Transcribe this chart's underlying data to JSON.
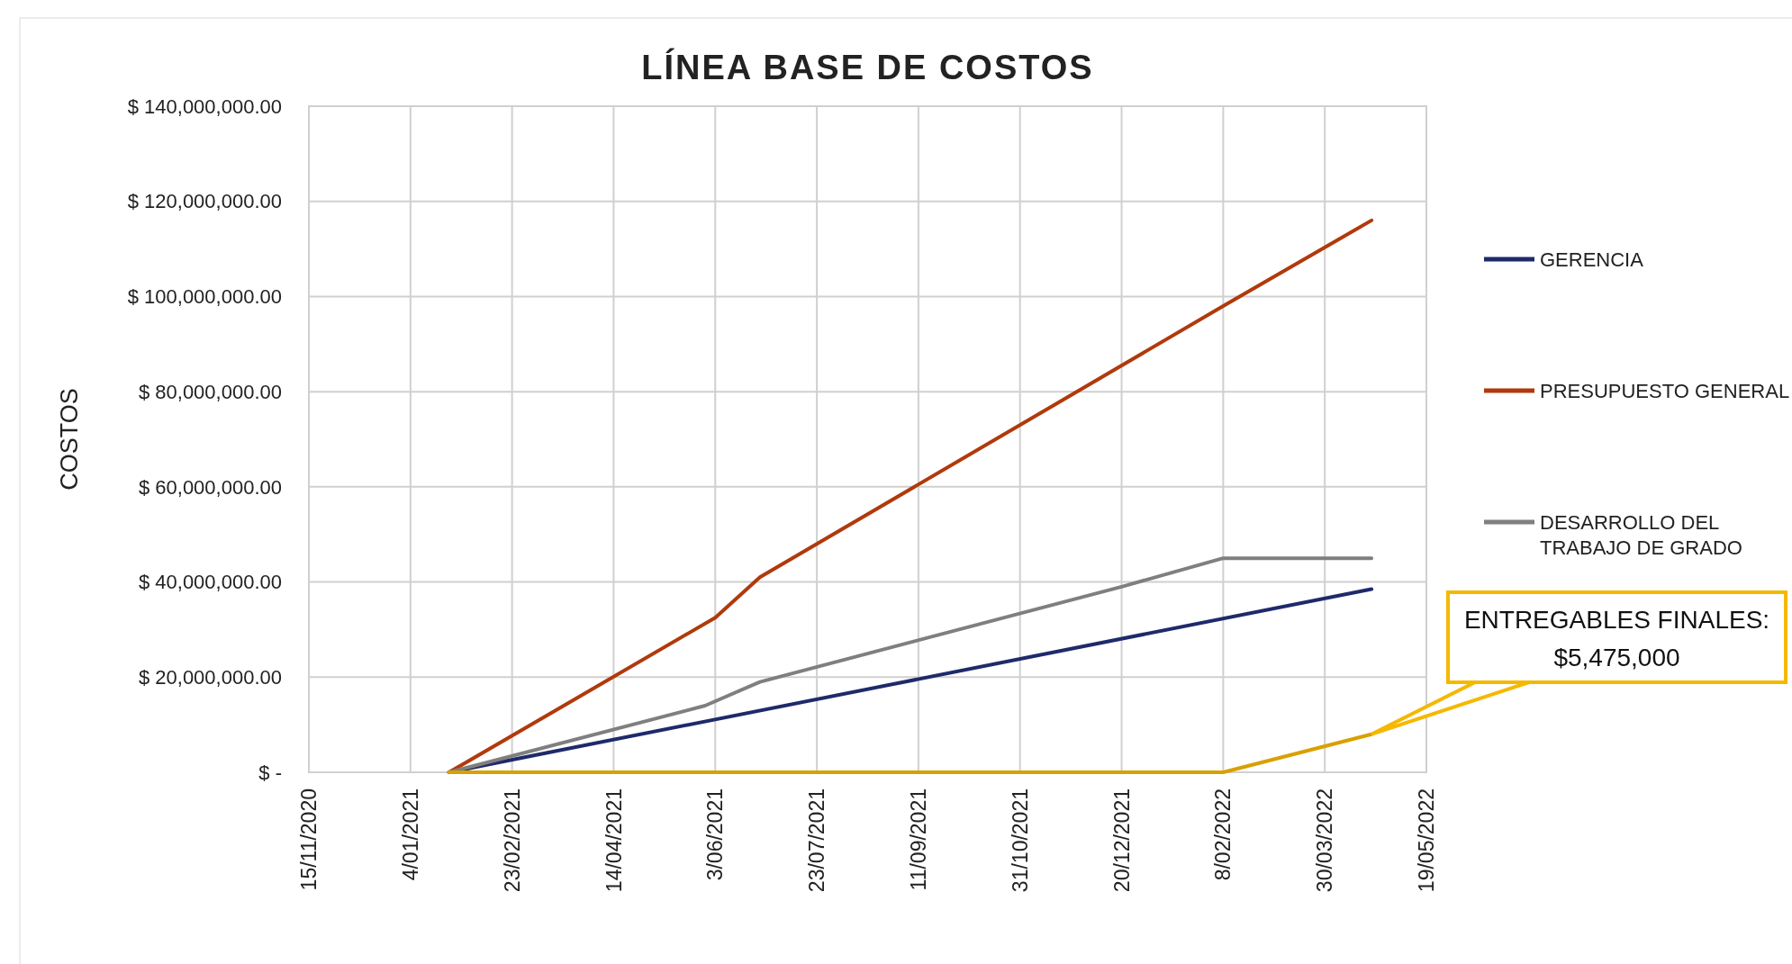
{
  "chart_data": {
    "type": "line",
    "title": "LÍNEA BASE DE COSTOS",
    "ylabel": "COSTOS",
    "xlim": [
      "2020-11-15",
      "2022-05-19"
    ],
    "xticks": [
      {
        "value": "2020-11-15",
        "label": "15/11/2020"
      },
      {
        "value": "2021-01-04",
        "label": "4/01/2021"
      },
      {
        "value": "2021-02-23",
        "label": "23/02/2021"
      },
      {
        "value": "2021-04-14",
        "label": "14/04/2021"
      },
      {
        "value": "2021-06-03",
        "label": "3/06/2021"
      },
      {
        "value": "2021-07-23",
        "label": "23/07/2021"
      },
      {
        "value": "2021-09-11",
        "label": "11/09/2021"
      },
      {
        "value": "2021-10-31",
        "label": "31/10/2021"
      },
      {
        "value": "2021-12-20",
        "label": "20/12/2021"
      },
      {
        "value": "2022-02-08",
        "label": "8/02/2022"
      },
      {
        "value": "2022-03-30",
        "label": "30/03/2022"
      },
      {
        "value": "2022-05-19",
        "label": "19/05/2022"
      }
    ],
    "ylim": [
      0,
      140000000
    ],
    "yticks": [
      {
        "value": 0,
        "label": "$ -"
      },
      {
        "value": 20000000,
        "label": "$ 20,000,000.00"
      },
      {
        "value": 40000000,
        "label": "$ 40,000,000.00"
      },
      {
        "value": 60000000,
        "label": "$ 60,000,000.00"
      },
      {
        "value": 80000000,
        "label": "$ 80,000,000.00"
      },
      {
        "value": 100000000,
        "label": "$ 100,000,000.00"
      },
      {
        "value": 120000000,
        "label": "$ 120,000,000.00"
      },
      {
        "value": 140000000,
        "label": "$ 140,000,000.00"
      }
    ],
    "grid": true,
    "legend": "right",
    "marker": "none",
    "line_style": "solid",
    "series": [
      {
        "name": "GERENCIA",
        "color": "#1f2a6b",
        "x": [
          "2021-01-23",
          "2022-04-22"
        ],
        "values": [
          0,
          38500000
        ]
      },
      {
        "name": "PRESUPUESTO GENERAL",
        "color": "#b03a0c",
        "x": [
          "2021-01-23",
          "2021-06-03",
          "2021-06-25",
          "2022-02-08",
          "2022-04-22"
        ],
        "values": [
          0,
          32500000,
          41000000,
          98000000,
          116000000
        ]
      },
      {
        "name": "DESARROLLO DEL TRABAJO DE GRADO",
        "color": "#7f7f7f",
        "x": [
          "2021-01-23",
          "2021-05-29",
          "2021-06-25",
          "2021-12-20",
          "2022-02-08",
          "2022-04-22"
        ],
        "values": [
          0,
          14000000,
          19000000,
          39000000,
          45000000,
          45000000
        ]
      },
      {
        "color": "#d9a000",
        "x": [
          "2021-01-23",
          "2022-02-08",
          "2022-04-22"
        ],
        "values": [
          0,
          0,
          8000000
        ]
      }
    ],
    "annotations": [
      {
        "text": "ENTREGABLES FINALES: $5,475,000",
        "x": "2022-04-22",
        "y": 8000000
      }
    ]
  }
}
